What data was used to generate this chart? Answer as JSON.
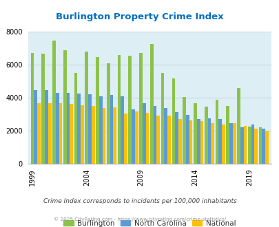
{
  "title": "Burlington Property Crime Index",
  "years": [
    1999,
    2000,
    2001,
    2002,
    2003,
    2004,
    2005,
    2006,
    2007,
    2008,
    2009,
    2010,
    2011,
    2012,
    2013,
    2014,
    2015,
    2016,
    2017,
    2018,
    2019,
    2020
  ],
  "burlington": [
    6700,
    6650,
    7450,
    6900,
    5500,
    6800,
    6450,
    6100,
    6600,
    6550,
    6700,
    7250,
    5500,
    5150,
    4050,
    3650,
    3450,
    3850,
    3500,
    4600,
    2220,
    2200
  ],
  "nc": [
    4450,
    4450,
    4280,
    4280,
    4250,
    4200,
    4100,
    4150,
    4100,
    3300,
    3650,
    3500,
    3350,
    3110,
    2950,
    2700,
    2750,
    2700,
    2450,
    2200,
    2380,
    2100
  ],
  "national": [
    3650,
    3650,
    3650,
    3600,
    3550,
    3480,
    3380,
    3400,
    3020,
    3180,
    3080,
    2900,
    2900,
    2700,
    2600,
    2580,
    2450,
    2350,
    2450,
    2300,
    2100,
    1980
  ],
  "burlington_color": "#8bc34a",
  "nc_color": "#5b9bd5",
  "national_color": "#ffc000",
  "bg_color": "#deeef5",
  "ylim": [
    0,
    8000
  ],
  "yticks": [
    0,
    2000,
    4000,
    6000,
    8000
  ],
  "xlabel_ticks": [
    1999,
    2004,
    2009,
    2014,
    2019
  ],
  "subtitle": "Crime Index corresponds to incidents per 100,000 inhabitants",
  "copyright": "© 2025 CityRating.com - https://www.cityrating.com/crime-statistics/",
  "title_color": "#0070c0",
  "subtitle_color": "#444444",
  "copyright_color": "#999999",
  "grid_color": "#bbccdd"
}
